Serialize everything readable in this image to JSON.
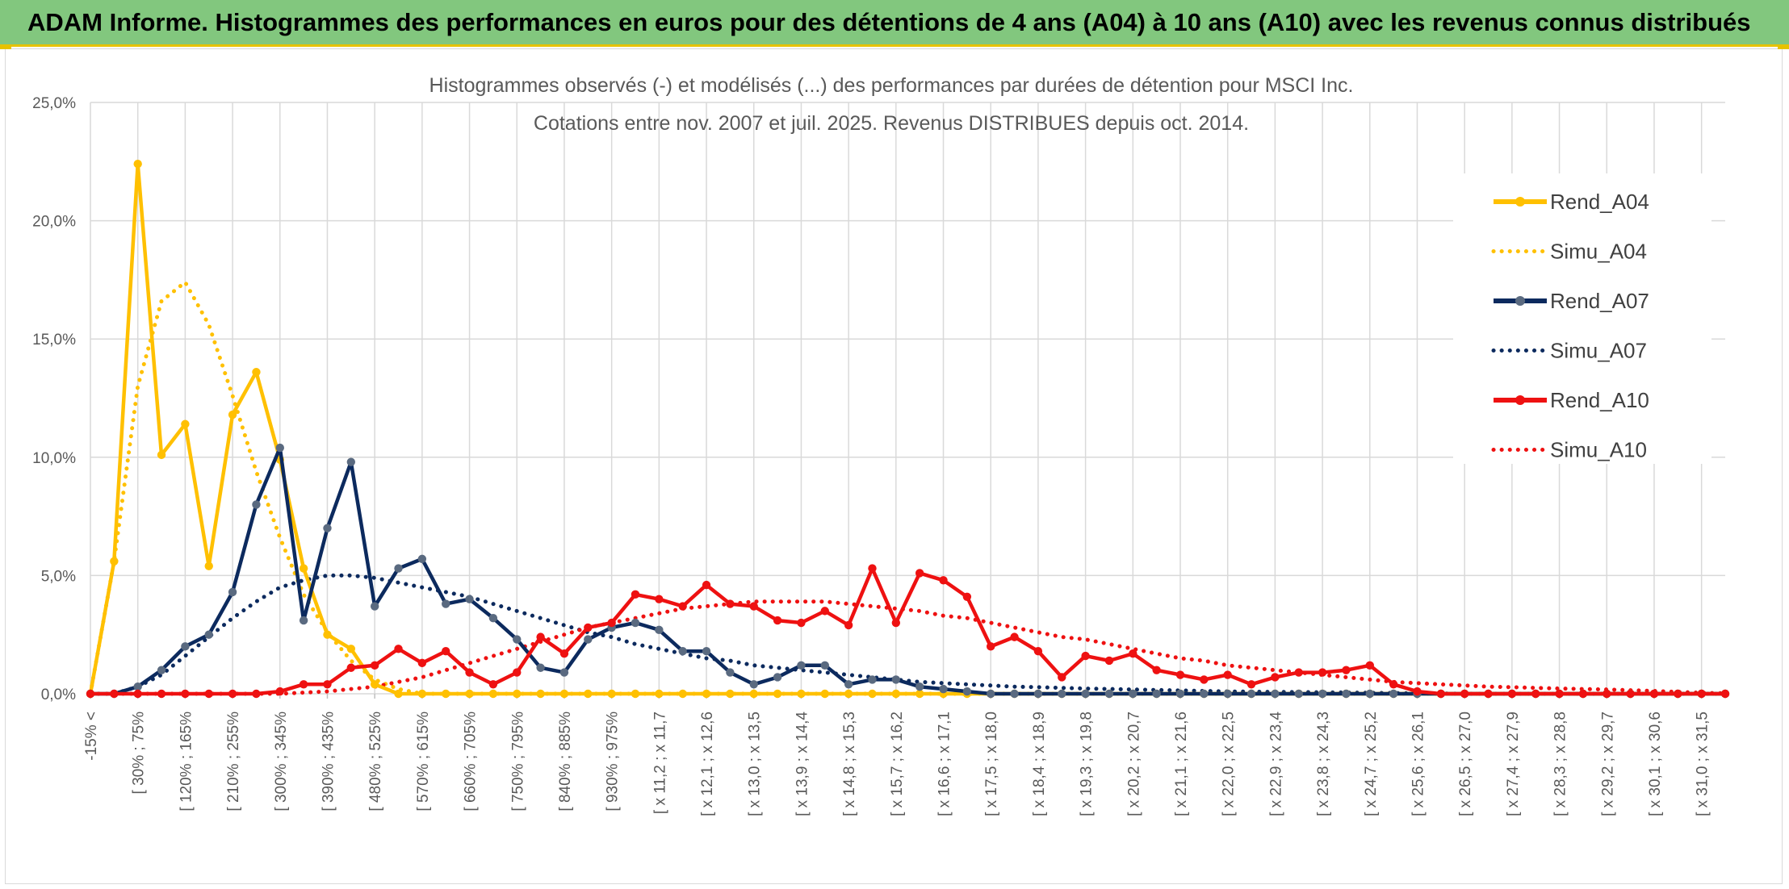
{
  "banner": {
    "title": "ADAM Informe. Histogrammes des performances en euros pour des détentions de 4 ans (A04) à 10 ans (A10) avec les revenus connus distribués"
  },
  "colors": {
    "banner_bg": "#82c77e",
    "banner_accent": "#e6c200",
    "A04": "#ffc000",
    "A07": "#0c2a5e",
    "A10": "#ee1111",
    "grid": "#d9d9d9"
  },
  "chart_data": {
    "type": "line",
    "title_line1": "Histogrammes observés (-) et modélisés (...) des performances par durées de détention pour MSCI Inc.",
    "title_line2": "Cotations entre nov. 2007 et juil. 2025. Revenus DISTRIBUES depuis oct. 2014.",
    "y_ticks": [
      "0,0%",
      "5,0%",
      "10,0%",
      "15,0%",
      "20,0%",
      "25,0%"
    ],
    "ylim": [
      0,
      25
    ],
    "grid": true,
    "legend_position": "right",
    "tick_labels": [
      "-15% <",
      "[ 30% ; 75%",
      "[ 120% ; 165%",
      "[ 210% ; 255%",
      "[ 300% ; 345%",
      "[ 390% ; 435%",
      "[ 480% ; 525%",
      "[ 570% ; 615%",
      "[ 660% ; 705%",
      "[ 750% ; 795%",
      "[ 840% ; 885%",
      "[ 930% ; 975%",
      "[ x 11,2 ; x 11,7",
      "[ x 12,1 ; x 12,6",
      "[ x 13,0 ; x 13,5",
      "[ x 13,9 ; x 14,4",
      "[ x 14,8 ; x 15,3",
      "[ x 15,7 ; x 16,2",
      "[ x 16,6 ; x 17,1",
      "[ x 17,5 ; x 18,0",
      "[ x 18,4 ; x 18,9",
      "[ x 19,3 ; x 19,8",
      "[ x 20,2 ; x 20,7",
      "[ x 21,1 ; x 21,6",
      "[ x 22,0 ; x 22,5",
      "[ x 22,9 ; x 23,4",
      "[ x 23,8 ; x 24,3",
      "[ x 24,7 ; x 25,2",
      "[ x 25,6 ; x 26,1",
      "[ x 26,5 ; x 27,0",
      "[ x 27,4 ; x 27,9",
      "[ x 28,3 ; x 28,8",
      "[ x 29,2 ; x 29,7",
      "[ x 30,1 ; x 30,6",
      "[ x 31,0 ; x 31,5"
    ],
    "series": [
      {
        "name": "Rend_A04",
        "style": "solid",
        "marker": true,
        "color_key": "A04",
        "values": [
          0,
          5.6,
          22.4,
          10.1,
          11.4,
          5.4,
          11.8,
          13.6,
          9.9,
          5.3,
          2.5,
          1.9,
          0.4,
          0,
          0,
          0,
          0,
          0,
          0,
          0,
          0,
          0,
          0,
          0,
          0,
          0,
          0,
          0,
          0,
          0,
          0,
          0,
          0,
          0,
          0,
          0,
          0,
          0,
          0,
          0,
          0,
          0,
          0,
          0,
          0,
          0,
          0,
          0,
          0,
          0,
          0,
          0,
          0,
          0,
          0,
          0,
          0,
          0,
          0,
          0,
          0,
          0,
          0,
          0,
          0,
          0,
          0,
          0,
          0,
          0
        ]
      },
      {
        "name": "Simu_A04",
        "style": "dotted",
        "marker": false,
        "color_key": "A04",
        "values": [
          0,
          5.6,
          13.0,
          16.6,
          17.4,
          15.6,
          12.6,
          9.4,
          6.6,
          4.2,
          2.6,
          1.4,
          0.6,
          0.2,
          0,
          0,
          0,
          0,
          0,
          0,
          0,
          0,
          0,
          0,
          0,
          0,
          0,
          0,
          0,
          0,
          0,
          0,
          0,
          0,
          0,
          0,
          0,
          0,
          0,
          0,
          0,
          0,
          0,
          0,
          0,
          0,
          0,
          0,
          0,
          0,
          0,
          0,
          0,
          0,
          0,
          0,
          0,
          0,
          0,
          0,
          0,
          0,
          0,
          0,
          0,
          0,
          0,
          0,
          0,
          0
        ]
      },
      {
        "name": "Rend_A07",
        "style": "solid",
        "marker": true,
        "color_key": "A07",
        "values": [
          0,
          0,
          0.3,
          1.0,
          2.0,
          2.5,
          4.3,
          8.0,
          10.4,
          3.1,
          7.0,
          9.8,
          3.7,
          5.3,
          5.7,
          3.8,
          4.0,
          3.2,
          2.3,
          1.1,
          0.9,
          2.3,
          2.8,
          3.0,
          2.7,
          1.8,
          1.8,
          0.9,
          0.4,
          0.7,
          1.2,
          1.2,
          0.4,
          0.6,
          0.6,
          0.3,
          0.2,
          0.1,
          0,
          0,
          0,
          0,
          0,
          0,
          0,
          0,
          0,
          0,
          0,
          0,
          0,
          0,
          0,
          0,
          0,
          0,
          0,
          0,
          0,
          0,
          0,
          0,
          0,
          0,
          0,
          0,
          0,
          0,
          0,
          0
        ]
      },
      {
        "name": "Simu_A07",
        "style": "dotted",
        "marker": false,
        "color_key": "A07",
        "values": [
          0,
          0,
          0.3,
          0.8,
          1.6,
          2.4,
          3.2,
          3.9,
          4.5,
          4.8,
          5.0,
          5.0,
          4.9,
          4.7,
          4.5,
          4.3,
          4.1,
          3.8,
          3.5,
          3.2,
          2.9,
          2.6,
          2.4,
          2.1,
          1.9,
          1.7,
          1.5,
          1.4,
          1.2,
          1.1,
          1.0,
          0.9,
          0.8,
          0.7,
          0.6,
          0.5,
          0.45,
          0.4,
          0.35,
          0.3,
          0.28,
          0.25,
          0.22,
          0.2,
          0.18,
          0.16,
          0.14,
          0.12,
          0.1,
          0.09,
          0.08,
          0.07,
          0.06,
          0.05,
          0.04,
          0.03,
          0.02,
          0.01,
          0,
          0,
          0,
          0,
          0,
          0,
          0,
          0,
          0,
          0,
          0,
          0
        ]
      },
      {
        "name": "Rend_A10",
        "style": "solid",
        "marker": true,
        "color_key": "A10",
        "values": [
          0,
          0,
          0,
          0,
          0,
          0,
          0,
          0,
          0.1,
          0.4,
          0.4,
          1.1,
          1.2,
          1.9,
          1.3,
          1.8,
          0.9,
          0.4,
          0.9,
          2.4,
          1.7,
          2.8,
          3.0,
          4.2,
          4.0,
          3.7,
          4.6,
          3.8,
          3.7,
          3.1,
          3.0,
          3.5,
          2.9,
          5.3,
          3.0,
          5.1,
          4.8,
          4.1,
          2.0,
          2.4,
          1.8,
          0.7,
          1.6,
          1.4,
          1.7,
          1.0,
          0.8,
          0.6,
          0.8,
          0.4,
          0.7,
          0.9,
          0.9,
          1.0,
          1.2,
          0.4,
          0.1,
          0,
          0,
          0,
          0,
          0,
          0,
          0,
          0,
          0,
          0,
          0,
          0,
          0
        ]
      },
      {
        "name": "Simu_A10",
        "style": "dotted",
        "marker": false,
        "color_key": "A10",
        "values": [
          0,
          0,
          0,
          0,
          0,
          0,
          0,
          0,
          0,
          0.05,
          0.1,
          0.2,
          0.3,
          0.5,
          0.7,
          1.0,
          1.3,
          1.6,
          1.9,
          2.2,
          2.5,
          2.8,
          3.0,
          3.2,
          3.4,
          3.6,
          3.7,
          3.8,
          3.9,
          3.9,
          3.9,
          3.9,
          3.8,
          3.7,
          3.6,
          3.5,
          3.3,
          3.2,
          3.0,
          2.8,
          2.6,
          2.4,
          2.3,
          2.1,
          1.9,
          1.7,
          1.5,
          1.4,
          1.2,
          1.1,
          1.0,
          0.9,
          0.8,
          0.7,
          0.6,
          0.5,
          0.45,
          0.4,
          0.35,
          0.3,
          0.28,
          0.25,
          0.22,
          0.2,
          0.18,
          0.15,
          0.12,
          0.08,
          0.04,
          0.02
        ]
      }
    ]
  }
}
